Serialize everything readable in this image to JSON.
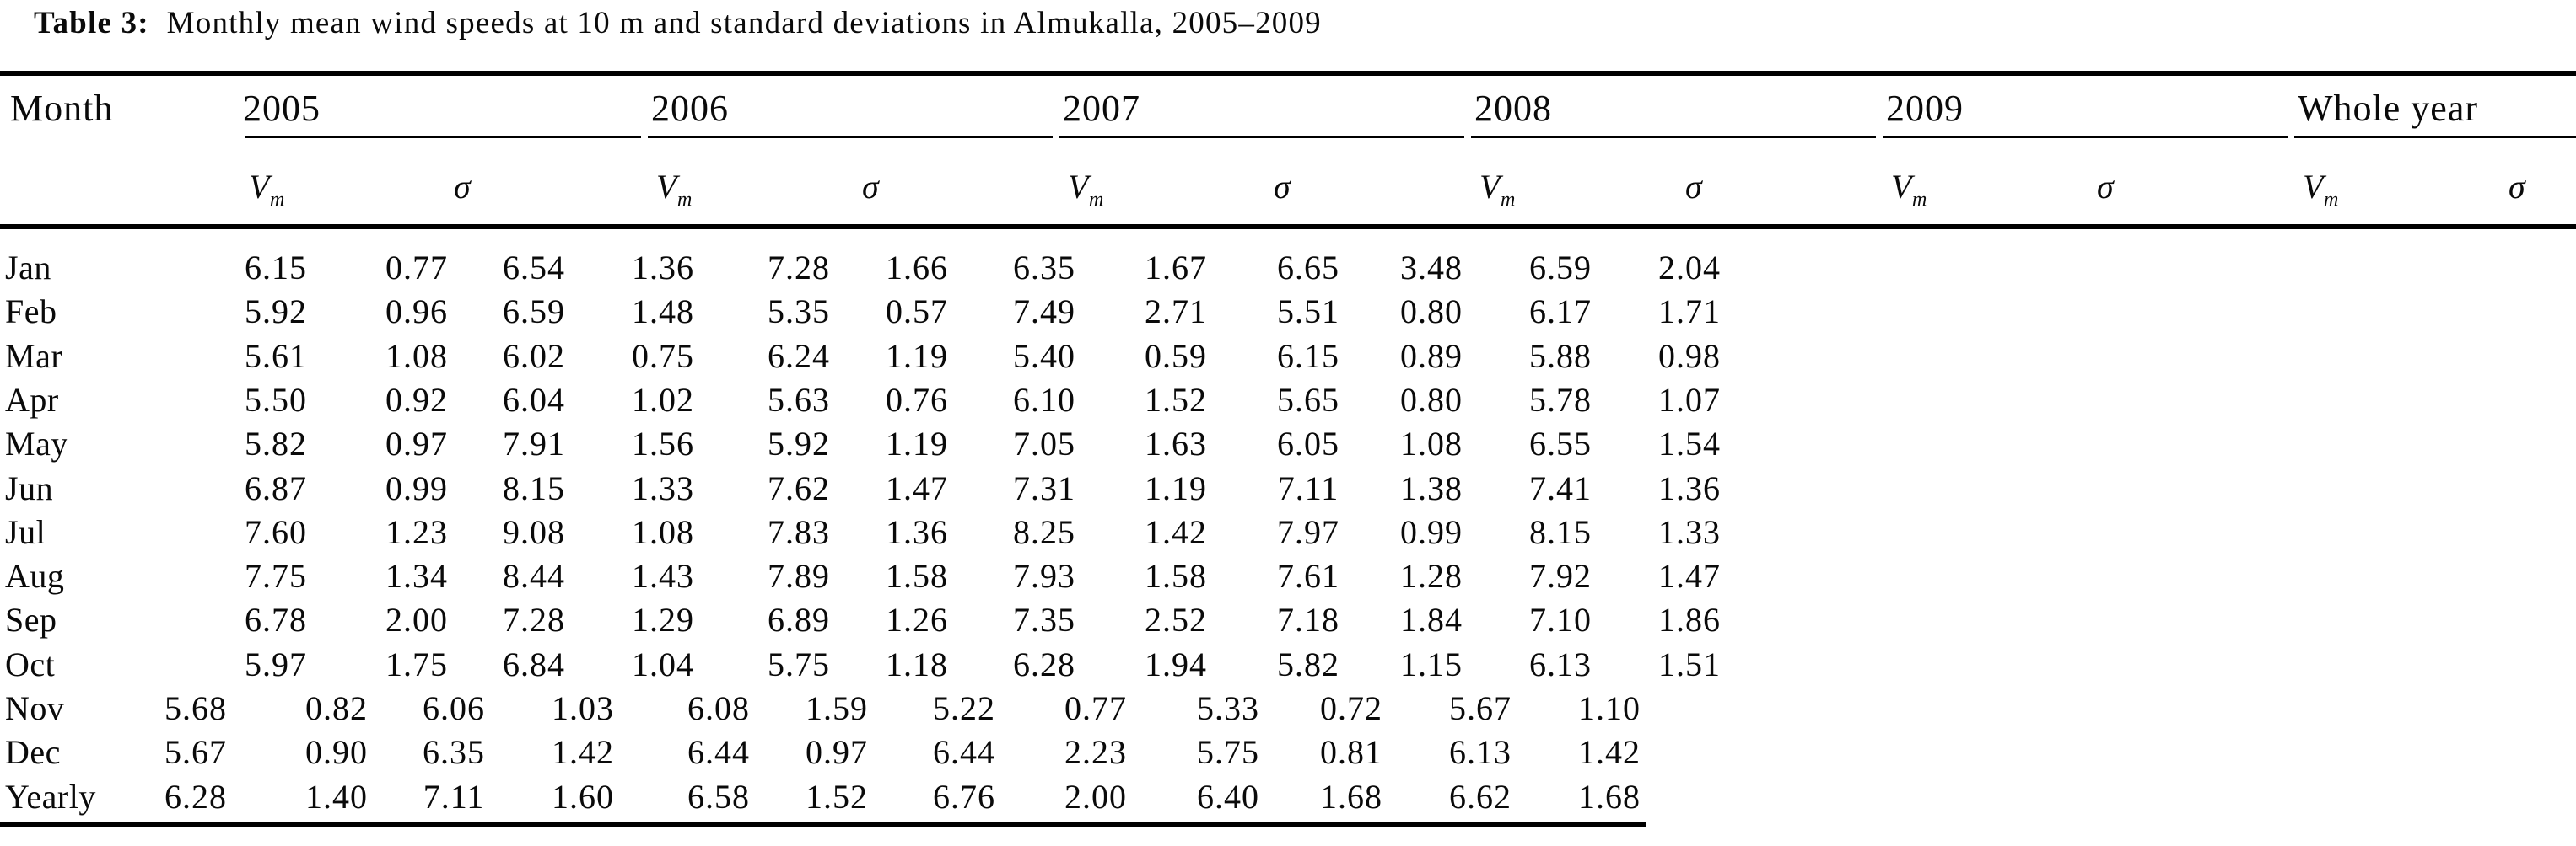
{
  "title": {
    "label": "Table 3:",
    "text": "Monthly mean wind speeds at 10 m and standard deviations in Almukalla, 2005–2009"
  },
  "table": {
    "month_header": "Month",
    "year_headers": [
      "2005",
      "2006",
      "2007",
      "2008",
      "2009",
      "Whole year"
    ],
    "vm": {
      "base": "V",
      "sub": "m"
    },
    "sigma": "σ",
    "rows": [
      {
        "month": "Jan",
        "indent": "standard",
        "values": [
          "6.15",
          "0.77",
          "6.54",
          "1.36",
          "7.28",
          "1.66",
          "6.35",
          "1.67",
          "6.65",
          "3.48",
          "6.59",
          "2.04"
        ]
      },
      {
        "month": "Feb",
        "indent": "standard",
        "values": [
          "5.92",
          "0.96",
          "6.59",
          "1.48",
          "5.35",
          "0.57",
          "7.49",
          "2.71",
          "5.51",
          "0.80",
          "6.17",
          "1.71"
        ]
      },
      {
        "month": "Mar",
        "indent": "standard",
        "values": [
          "5.61",
          "1.08",
          "6.02",
          "0.75",
          "6.24",
          "1.19",
          "5.40",
          "0.59",
          "6.15",
          "0.89",
          "5.88",
          "0.98"
        ]
      },
      {
        "month": "Apr",
        "indent": "standard",
        "values": [
          "5.50",
          "0.92",
          "6.04",
          "1.02",
          "5.63",
          "0.76",
          "6.10",
          "1.52",
          "5.65",
          "0.80",
          "5.78",
          "1.07"
        ]
      },
      {
        "month": "May",
        "indent": "standard",
        "values": [
          "5.82",
          "0.97",
          "7.91",
          "1.56",
          "5.92",
          "1.19",
          "7.05",
          "1.63",
          "6.05",
          "1.08",
          "6.55",
          "1.54"
        ]
      },
      {
        "month": "Jun",
        "indent": "standard",
        "values": [
          "6.87",
          "0.99",
          "8.15",
          "1.33",
          "7.62",
          "1.47",
          "7.31",
          "1.19",
          "7.11",
          "1.38",
          "7.41",
          "1.36"
        ]
      },
      {
        "month": "Jul",
        "indent": "standard",
        "values": [
          "7.60",
          "1.23",
          "9.08",
          "1.08",
          "7.83",
          "1.36",
          "8.25",
          "1.42",
          "7.97",
          "0.99",
          "8.15",
          "1.33"
        ]
      },
      {
        "month": "Aug",
        "indent": "standard",
        "values": [
          "7.75",
          "1.34",
          "8.44",
          "1.43",
          "7.89",
          "1.58",
          "7.93",
          "1.58",
          "7.61",
          "1.28",
          "7.92",
          "1.47"
        ]
      },
      {
        "month": "Sep",
        "indent": "standard",
        "values": [
          "6.78",
          "2.00",
          "7.28",
          "1.29",
          "6.89",
          "1.26",
          "7.35",
          "2.52",
          "7.18",
          "1.84",
          "7.10",
          "1.86"
        ]
      },
      {
        "month": "Oct",
        "indent": "standard",
        "values": [
          "5.97",
          "1.75",
          "6.84",
          "1.04",
          "5.75",
          "1.18",
          "6.28",
          "1.94",
          "5.82",
          "1.15",
          "6.13",
          "1.51"
        ]
      },
      {
        "month": "Nov",
        "indent": "shifted-left",
        "values": [
          "5.68",
          "0.82",
          "6.06",
          "1.03",
          "6.08",
          "1.59",
          "5.22",
          "0.77",
          "5.33",
          "0.72",
          "5.67",
          "1.10"
        ]
      },
      {
        "month": "Dec",
        "indent": "shifted-left",
        "values": [
          "5.67",
          "0.90",
          "6.35",
          "1.42",
          "6.44",
          "0.97",
          "6.44",
          "2.23",
          "5.75",
          "0.81",
          "6.13",
          "1.42"
        ]
      },
      {
        "month": "Yearly",
        "indent": "shifted-left",
        "values": [
          "6.28",
          "1.40",
          "7.11",
          "1.60",
          "6.58",
          "1.52",
          "6.76",
          "2.00",
          "6.40",
          "1.68",
          "6.62",
          "1.68"
        ]
      }
    ]
  }
}
